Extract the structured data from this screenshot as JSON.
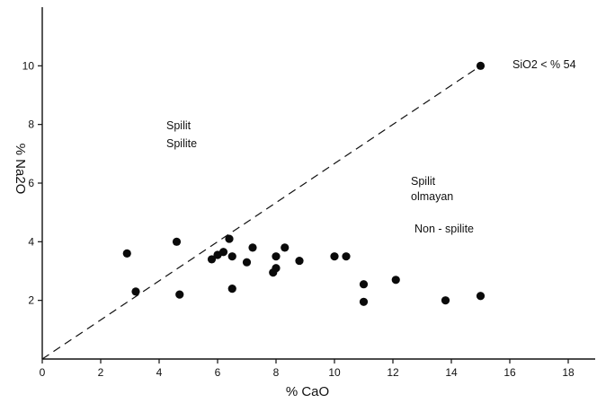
{
  "chart_data": {
    "type": "scatter",
    "title": "",
    "xlabel": "% CaO",
    "ylabel": "% Na2O",
    "xlim": [
      0,
      18
    ],
    "ylim": [
      0,
      12
    ],
    "x_ticks": [
      "0",
      "2",
      "4",
      "6",
      "8",
      "10",
      "12",
      "14",
      "16",
      "18"
    ],
    "y_ticks": [
      "2",
      "4",
      "6",
      "8",
      "10"
    ],
    "grid": false,
    "divider_line": {
      "style": "dashed",
      "from": [
        0,
        0
      ],
      "to": [
        15,
        10
      ]
    },
    "annotations": {
      "condition": "SiO2 < % 54",
      "spilite_tr": "Spilit",
      "spilite_en": "Spilite",
      "non_spilite_tr_1": "Spilit",
      "non_spilite_tr_2": "olmayan",
      "non_spilite_en": "Non - spilite"
    },
    "series": [
      {
        "points": [
          {
            "x": 2.9,
            "y": 3.6
          },
          {
            "x": 3.2,
            "y": 2.3
          },
          {
            "x": 4.6,
            "y": 4.0
          },
          {
            "x": 4.7,
            "y": 2.2
          },
          {
            "x": 5.8,
            "y": 3.4
          },
          {
            "x": 6.0,
            "y": 3.55
          },
          {
            "x": 6.2,
            "y": 3.65
          },
          {
            "x": 6.4,
            "y": 4.1
          },
          {
            "x": 6.5,
            "y": 3.5
          },
          {
            "x": 6.5,
            "y": 2.4
          },
          {
            "x": 7.0,
            "y": 3.3
          },
          {
            "x": 7.2,
            "y": 3.8
          },
          {
            "x": 7.9,
            "y": 2.95
          },
          {
            "x": 8.0,
            "y": 3.5
          },
          {
            "x": 8.0,
            "y": 3.1
          },
          {
            "x": 8.3,
            "y": 3.8
          },
          {
            "x": 8.8,
            "y": 3.35
          },
          {
            "x": 10.0,
            "y": 3.5
          },
          {
            "x": 10.4,
            "y": 3.5
          },
          {
            "x": 11.0,
            "y": 2.55
          },
          {
            "x": 11.0,
            "y": 1.95
          },
          {
            "x": 12.1,
            "y": 2.7
          },
          {
            "x": 13.8,
            "y": 2.0
          },
          {
            "x": 15.0,
            "y": 2.15
          },
          {
            "x": 15.0,
            "y": 10.0
          }
        ]
      }
    ]
  }
}
